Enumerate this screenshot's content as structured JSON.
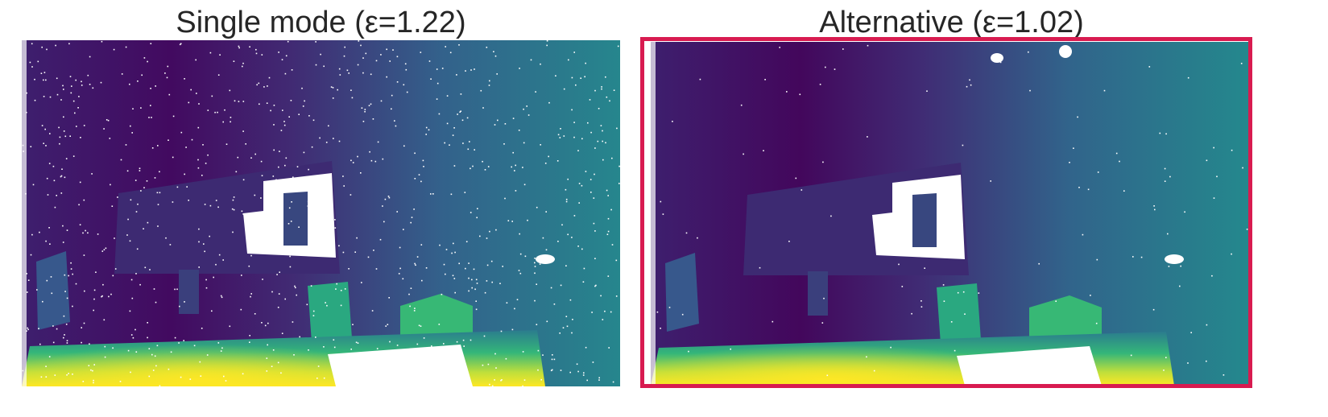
{
  "panels": {
    "left": {
      "title": "Single mode (ε=1.22)"
    },
    "right": {
      "title": "Alternative (ε=1.02)",
      "highlight_color": "#d81b50"
    }
  },
  "colormap": [
    "#440154",
    "#3b528b",
    "#21918c",
    "#5ec962",
    "#fde725"
  ]
}
